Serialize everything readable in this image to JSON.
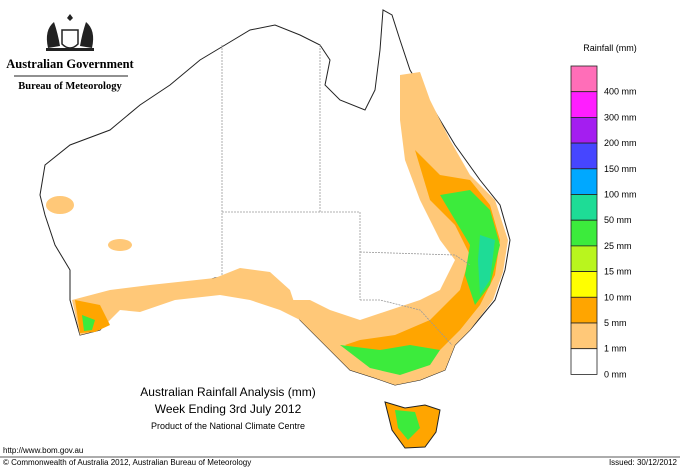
{
  "header": {
    "government": "Australian Government",
    "agency": "Bureau of Meteorology"
  },
  "legend": {
    "title": "Rainfall (mm)",
    "items": [
      {
        "label": "400 mm",
        "color": "#ff6eb8"
      },
      {
        "label": "300 mm",
        "color": "#ff1eff"
      },
      {
        "label": "200 mm",
        "color": "#a41ef0"
      },
      {
        "label": "150 mm",
        "color": "#4646ff"
      },
      {
        "label": "100 mm",
        "color": "#00a8ff"
      },
      {
        "label": "50 mm",
        "color": "#1edc96"
      },
      {
        "label": "25 mm",
        "color": "#3ceb3c"
      },
      {
        "label": "15 mm",
        "color": "#b9f51e"
      },
      {
        "label": "10 mm",
        "color": "#ffff00"
      },
      {
        "label": "5 mm",
        "color": "#ffa500"
      },
      {
        "label": "1 mm",
        "color": "#ffc878"
      },
      {
        "label": "0 mm",
        "color": "#ffffff"
      }
    ]
  },
  "title": {
    "line1": "Australian Rainfall Analysis (mm)",
    "line2": "Week Ending 3rd July 2012",
    "line3": "Product of the National Climate Centre"
  },
  "footer": {
    "url": "http://www.bom.gov.au",
    "copyright": "© Commonwealth of Australia 2012, Australian Bureau of Meteorology",
    "issued": "Issued: 30/12/2012"
  }
}
